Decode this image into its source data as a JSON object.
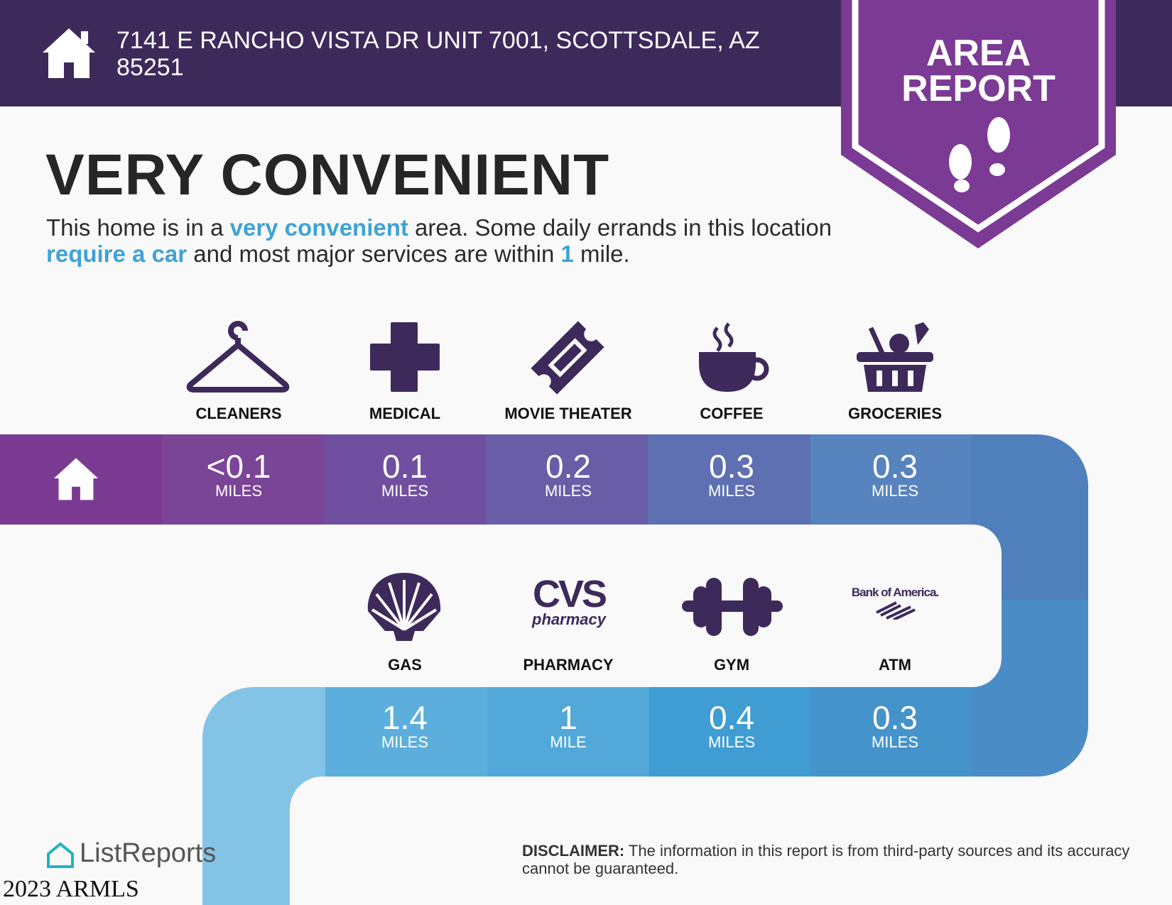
{
  "header": {
    "address": "7141 E RANCHO VISTA DR UNIT 7001, SCOTTSDALE, AZ 85251",
    "badge_line1": "AREA",
    "badge_line2": "REPORT"
  },
  "rating": {
    "title": "VERY CONVENIENT",
    "desc": {
      "p1": "This home is in a ",
      "h1": "very convenient",
      "p2": " area. Some daily errands in this location ",
      "h2": "require a car",
      "p3": " and most major services are within ",
      "h3": "1",
      "p4": " mile."
    }
  },
  "row1": [
    {
      "label": "CLEANERS",
      "value": "<0.1",
      "unit": "MILES",
      "icon": "hanger-icon"
    },
    {
      "label": "MEDICAL",
      "value": "0.1",
      "unit": "MILES",
      "icon": "medical-cross-icon"
    },
    {
      "label": "MOVIE THEATER",
      "value": "0.2",
      "unit": "MILES",
      "icon": "ticket-icon"
    },
    {
      "label": "COFFEE",
      "value": "0.3",
      "unit": "MILES",
      "icon": "coffee-cup-icon"
    },
    {
      "label": "GROCERIES",
      "value": "0.3",
      "unit": "MILES",
      "icon": "basket-icon"
    }
  ],
  "row2": [
    {
      "label": "GAS",
      "value": "1.4",
      "unit": "MILES",
      "icon": "shell-logo",
      "logo_text": ""
    },
    {
      "label": "PHARMACY",
      "value": "1",
      "unit": "MILE",
      "icon": "cvs-logo",
      "logo_text": "CVS",
      "logo_sub": "pharmacy"
    },
    {
      "label": "GYM",
      "value": "0.4",
      "unit": "MILES",
      "icon": "dumbbell-icon"
    },
    {
      "label": "ATM",
      "value": "0.3",
      "unit": "MILES",
      "icon": "bank-of-america-logo",
      "logo_text": "Bank of America."
    }
  ],
  "footer": {
    "disclaimer_label": "DISCLAIMER:",
    "disclaimer": " The information in this report is from third-party sources and its accuracy cannot be guaranteed.",
    "logo": "ListReports",
    "watermark": "2023 ARMLS"
  },
  "colors": {
    "header": "#3d2a5b",
    "badge": "#7b3a94",
    "accent": "#3fa3d5"
  }
}
